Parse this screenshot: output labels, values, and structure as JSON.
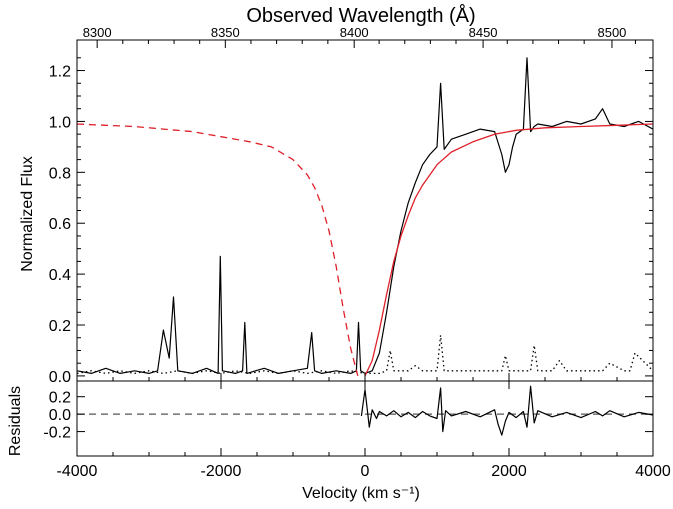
{
  "chart_data": [
    {
      "type": "line",
      "panel": "main",
      "title": "Observed Wavelength (Å)",
      "xlabel": "",
      "ylabel": "Normalized Flux",
      "xlim": [
        -4000,
        4000
      ],
      "ylim": [
        -0.02,
        1.32
      ],
      "xticks": [
        "-4000",
        "-2000",
        "0",
        "2000",
        "4000"
      ],
      "yticks": [
        "0.0",
        "0.2",
        "0.4",
        "0.6",
        "0.8",
        "1.0",
        "1.2"
      ],
      "top_axis": {
        "label": "Observed Wavelength (Å)",
        "ticks": [
          "8300",
          "8350",
          "8400",
          "8450",
          "8500"
        ],
        "tick_velocity": [
          -3720,
          -1940,
          -150,
          1640,
          3430
        ]
      },
      "grid": false,
      "series": [
        {
          "style": "solid",
          "color": "#000000",
          "x": [
            -4000,
            -3800,
            -3600,
            -3400,
            -3200,
            -3000,
            -2880,
            -2800,
            -2720,
            -2660,
            -2600,
            -2400,
            -2200,
            -2040,
            -2010,
            -1980,
            -1800,
            -1700,
            -1670,
            -1640,
            -1400,
            -1200,
            -1000,
            -800,
            -740,
            -700,
            -600,
            -400,
            -200,
            -120,
            -90,
            -60,
            0,
            100,
            200,
            300,
            400,
            500,
            600,
            700,
            800,
            900,
            1000,
            1050,
            1100,
            1200,
            1400,
            1600,
            1800,
            1900,
            1950,
            2000,
            2050,
            2100,
            2200,
            2250,
            2300,
            2350,
            2400,
            2600,
            2800,
            3000,
            3200,
            3300,
            3400,
            3600,
            3800,
            4000
          ],
          "y": [
            0.02,
            0.01,
            0.03,
            0.01,
            0.02,
            0.01,
            0.02,
            0.18,
            0.07,
            0.31,
            0.02,
            0.01,
            0.03,
            0.01,
            0.47,
            0.02,
            0.01,
            0.02,
            0.21,
            0.01,
            0.03,
            0.01,
            0.02,
            0.03,
            0.17,
            0.02,
            0.01,
            0.02,
            0.01,
            0.02,
            0.21,
            0.02,
            0.01,
            0.02,
            0.09,
            0.25,
            0.43,
            0.57,
            0.68,
            0.76,
            0.83,
            0.87,
            0.9,
            1.15,
            0.89,
            0.93,
            0.95,
            0.97,
            0.96,
            0.87,
            0.8,
            0.83,
            0.9,
            0.95,
            0.97,
            1.25,
            0.96,
            0.98,
            0.99,
            0.98,
            1.0,
            0.99,
            1.01,
            1.05,
            0.99,
            0.98,
            1.0,
            0.97
          ]
        },
        {
          "style": "dashed",
          "color": "#e0202a",
          "x": [
            -4000,
            -3600,
            -3200,
            -2800,
            -2400,
            -2000,
            -1600,
            -1300,
            -1000,
            -800,
            -700,
            -600,
            -500,
            -400,
            -300,
            -200,
            -100
          ],
          "y": [
            0.99,
            0.985,
            0.98,
            0.97,
            0.96,
            0.94,
            0.92,
            0.9,
            0.85,
            0.79,
            0.74,
            0.67,
            0.57,
            0.43,
            0.26,
            0.11,
            0.0
          ]
        },
        {
          "style": "solid",
          "color": "#e0202a",
          "x": [
            0,
            100,
            200,
            300,
            400,
            500,
            600,
            700,
            800,
            1000,
            1200,
            1500,
            1800,
            2100,
            2500,
            3000,
            3500,
            4000
          ],
          "y": [
            0.0,
            0.06,
            0.18,
            0.32,
            0.45,
            0.55,
            0.63,
            0.7,
            0.75,
            0.83,
            0.88,
            0.92,
            0.95,
            0.965,
            0.975,
            0.98,
            0.985,
            0.99
          ]
        },
        {
          "style": "dotted",
          "color": "#000000",
          "x": [
            -4000,
            -3800,
            -3600,
            -3400,
            -3200,
            -3000,
            -2800,
            -2600,
            -2400,
            -2200,
            -2000,
            -1800,
            -1600,
            -1400,
            -1200,
            -1000,
            -800,
            -600,
            -400,
            -200,
            0,
            200,
            300,
            350,
            400,
            600,
            700,
            800,
            1000,
            1050,
            1100,
            1200,
            1400,
            1600,
            1800,
            1900,
            1950,
            2000,
            2200,
            2300,
            2350,
            2400,
            2600,
            2700,
            2800,
            3000,
            3200,
            3300,
            3400,
            3600,
            3680,
            3750,
            4000
          ],
          "y": [
            0.01,
            0.02,
            0.01,
            0.02,
            0.01,
            0.02,
            0.01,
            0.02,
            0.01,
            0.02,
            0.01,
            0.02,
            0.01,
            0.02,
            0.01,
            0.02,
            0.01,
            0.02,
            0.01,
            0.02,
            0.01,
            0.01,
            0.02,
            0.1,
            0.02,
            0.02,
            0.04,
            0.02,
            0.02,
            0.16,
            0.02,
            0.02,
            0.02,
            0.02,
            0.02,
            0.02,
            0.08,
            0.02,
            0.02,
            0.02,
            0.12,
            0.02,
            0.02,
            0.06,
            0.02,
            0.02,
            0.02,
            0.02,
            0.05,
            0.02,
            0.02,
            0.09,
            0.02
          ]
        }
      ]
    },
    {
      "type": "line",
      "panel": "residuals",
      "xlabel": "Velocity (km s⁻¹)",
      "ylabel": "Residuals",
      "xlim": [
        -4000,
        4000
      ],
      "ylim": [
        -0.48,
        0.38
      ],
      "xticks": [
        "-4000",
        "-2000",
        "0",
        "2000",
        "4000"
      ],
      "yticks": [
        "0.2",
        "0.0",
        "-0.2"
      ],
      "grid": false,
      "series": [
        {
          "style": "dashed",
          "color": "#555555",
          "x": [
            -4000,
            -200,
            4000
          ],
          "y": [
            0.0,
            0.0,
            0.0
          ]
        },
        {
          "style": "solid",
          "color": "#000000",
          "x": [
            -50,
            0,
            60,
            100,
            160,
            200,
            300,
            400,
            500,
            600,
            700,
            800,
            900,
            1000,
            1050,
            1080,
            1120,
            1200,
            1400,
            1600,
            1800,
            1850,
            1900,
            1950,
            2000,
            2100,
            2200,
            2250,
            2300,
            2350,
            2400,
            2600,
            2800,
            3000,
            3200,
            3300,
            3400,
            3600,
            3800,
            4000
          ],
          "y": [
            -0.02,
            0.28,
            -0.15,
            0.05,
            -0.05,
            0.03,
            -0.02,
            0.04,
            -0.03,
            0.02,
            -0.04,
            0.03,
            -0.02,
            -0.05,
            0.3,
            -0.2,
            0.04,
            -0.02,
            0.03,
            -0.03,
            0.05,
            -0.12,
            -0.24,
            -0.08,
            0.02,
            -0.04,
            0.03,
            -0.15,
            0.32,
            -0.1,
            0.04,
            -0.03,
            0.02,
            -0.04,
            0.03,
            -0.02,
            0.04,
            -0.03,
            0.02,
            -0.01
          ]
        }
      ]
    }
  ]
}
